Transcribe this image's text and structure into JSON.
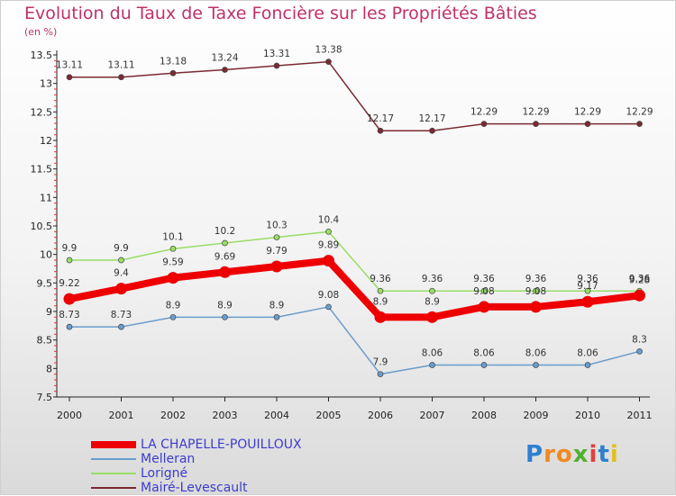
{
  "chart_data": {
    "type": "line",
    "title": "Evolution du Taux de Taxe Foncière sur les Propriétés Bâties",
    "subtitle": "(en %)",
    "x": [
      "2000",
      "2001",
      "2002",
      "2003",
      "2004",
      "2005",
      "2006",
      "2007",
      "2008",
      "2009",
      "2010",
      "2011"
    ],
    "ylim": [
      7.5,
      13.5
    ],
    "yticks": [
      "7.5",
      "8",
      "8.5",
      "9",
      "9.5",
      "10",
      "10.5",
      "11",
      "11.5",
      "12",
      "12.5",
      "13",
      "13.5"
    ],
    "series": [
      {
        "name": "LA CHAPELLE-POUILLOUX",
        "color": "#ee0000",
        "values": [
          9.22,
          9.4,
          9.59,
          9.69,
          9.79,
          9.89,
          8.9,
          8.9,
          9.08,
          9.08,
          9.17,
          9.28
        ],
        "labels": [
          "9.22",
          "9.4",
          "9.59",
          "9.69",
          "9.79",
          "9.89",
          "8.9",
          "8.9",
          "9.08",
          "9.08",
          "9.17",
          "9.28"
        ]
      },
      {
        "name": "Melleran",
        "color": "#6a9dcc",
        "values": [
          8.73,
          8.73,
          8.9,
          8.9,
          8.9,
          9.08,
          7.9,
          8.06,
          8.06,
          8.06,
          8.06,
          8.3
        ],
        "labels": [
          "8.73",
          "8.73",
          "8.9",
          "8.9",
          "8.9",
          "9.08",
          "7.9",
          "8.06",
          "8.06",
          "8.06",
          "8.06",
          "8.3"
        ]
      },
      {
        "name": "Lorigné",
        "color": "#99dd66",
        "values": [
          9.9,
          9.9,
          10.1,
          10.2,
          10.3,
          10.4,
          9.36,
          9.36,
          9.36,
          9.36,
          9.36,
          9.36
        ],
        "labels": [
          "9.9",
          "9.9",
          "10.1",
          "10.2",
          "10.3",
          "10.4",
          "9.36",
          "9.36",
          "9.36",
          "9.36",
          "9.36",
          "9.36"
        ]
      },
      {
        "name": "Mairé-Levescault",
        "color": "#7a2a32",
        "values": [
          13.11,
          13.11,
          13.18,
          13.24,
          13.31,
          13.38,
          12.17,
          12.17,
          12.29,
          12.29,
          12.29,
          12.29
        ],
        "labels": [
          "13.11",
          "13.11",
          "13.18",
          "13.24",
          "13.31",
          "13.38",
          "12.17",
          "12.17",
          "12.29",
          "12.29",
          "12.29",
          "12.29"
        ]
      }
    ],
    "legend": [
      "LA CHAPELLE-POUILLOUX",
      "Melleran",
      "Lorigné",
      "Mairé-Levescault"
    ],
    "legend_position": "bottom-left"
  },
  "logo": {
    "letters": [
      "P",
      "r",
      "o",
      "x",
      "i",
      "t",
      "i"
    ],
    "colors": [
      "#2f7fd0",
      "#f08a20",
      "#f08a20",
      "#50b030",
      "#e04040",
      "#2f7fd0",
      "#e0c020"
    ]
  }
}
